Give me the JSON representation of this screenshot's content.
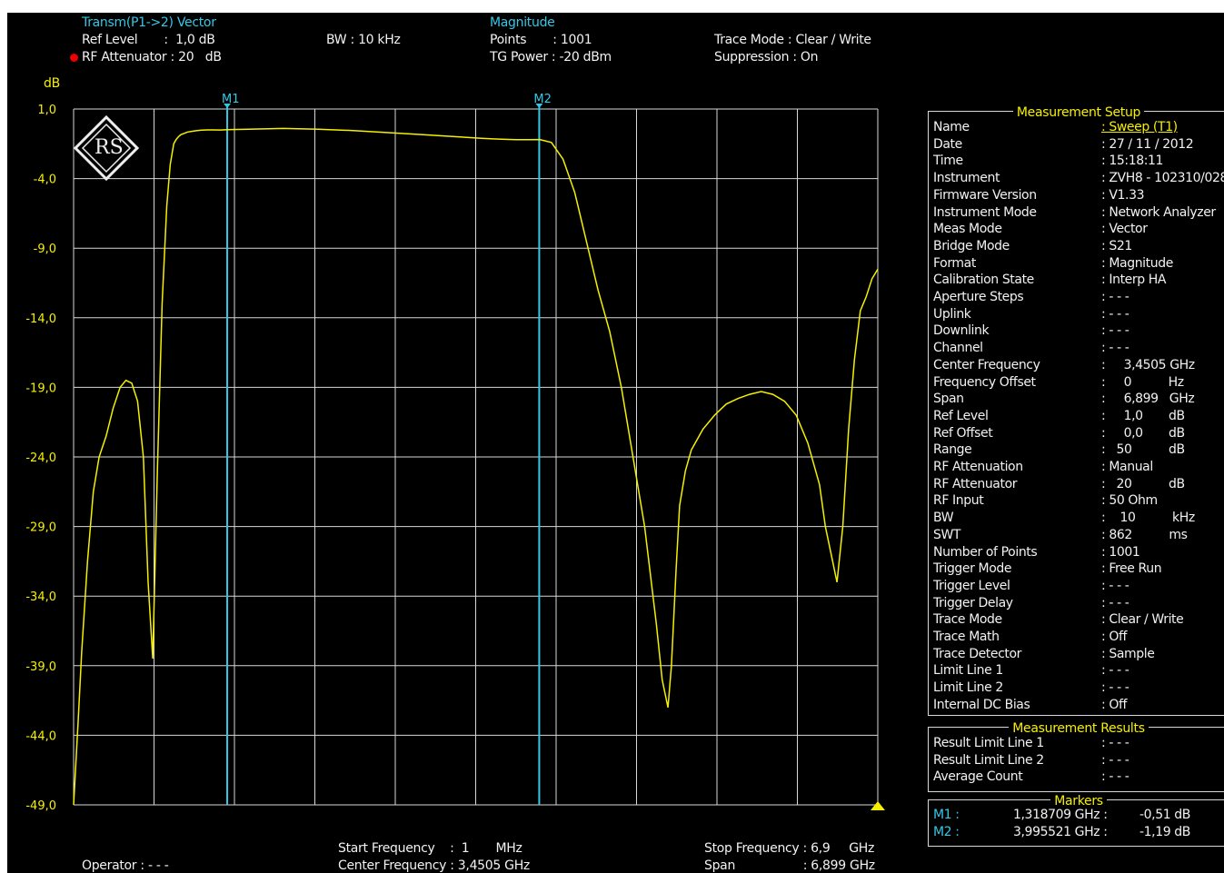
{
  "header": {
    "mode": "Transm(P1->2) Vector",
    "ref_level": "Ref Level       :  1,0 dB",
    "rf_attenuator": "RF Attenuator : 20   dB",
    "bw": "BW : 10 kHz",
    "format": "Magnitude",
    "points": "Points       : 1001",
    "tg_power": "TG Power : -20 dBm",
    "trace_mode": "Trace Mode : Clear / Write",
    "suppression": "Suppression : On"
  },
  "footer": {
    "operator": "Operator : - - -",
    "start_frequency": "Start Frequency    :  1       MHz",
    "center_frequency": "Center Frequency : 3,4505 GHz",
    "stop_frequency": "Stop Frequency : 6,9     GHz",
    "span": "Span                  : 6,899 GHz"
  },
  "colors": {
    "trace": "#f5f000",
    "marker": "#35c8e6",
    "grid": "#d8d8d8",
    "background": "#000000",
    "rec_dot": "#ee0000"
  },
  "logo": {
    "icon": "rohde-schwarz-logo",
    "text": "RS"
  },
  "chart_data": {
    "type": "line",
    "ylabel": "dB",
    "ylim": [
      -49,
      1
    ],
    "yticks": [
      "1,0",
      "-4,0",
      "-9,0",
      "-14,0",
      "-19,0",
      "-24,0",
      "-29,0",
      "-34,0",
      "-39,0",
      "-44,0",
      "-49,0"
    ],
    "xlim": [
      0.001,
      6.9
    ],
    "x_unit": "GHz",
    "grid": true,
    "markers": [
      {
        "label": "M1",
        "x": 1.318709,
        "y": -0.51
      },
      {
        "label": "M2",
        "x": 3.995521,
        "y": -1.19
      }
    ],
    "end_marker_x": 6.9,
    "series": [
      {
        "x": [
          0.001,
          0.04,
          0.07,
          0.12,
          0.17,
          0.22,
          0.28,
          0.34,
          0.4,
          0.45,
          0.5,
          0.55,
          0.6,
          0.64,
          0.68,
          0.72,
          0.76,
          0.8,
          0.83,
          0.86,
          0.88,
          0.9,
          0.92,
          0.95,
          0.98,
          1.02,
          1.06,
          1.1,
          1.15,
          1.2,
          1.26,
          1.32,
          1.5,
          1.8,
          2.1,
          2.4,
          2.7,
          3.0,
          3.3,
          3.5,
          3.6,
          3.7,
          3.8,
          3.9,
          4.0,
          4.1,
          4.2,
          4.3,
          4.4,
          4.5,
          4.6,
          4.7,
          4.8,
          4.9,
          5.0,
          5.05,
          5.1,
          5.13,
          5.17,
          5.2,
          5.25,
          5.3,
          5.4,
          5.5,
          5.6,
          5.7,
          5.8,
          5.9,
          6.0,
          6.1,
          6.2,
          6.3,
          6.4,
          6.45,
          6.5,
          6.55,
          6.6,
          6.65,
          6.7,
          6.75,
          6.8,
          6.85,
          6.9
        ],
        "y": [
          -49,
          -43,
          -38,
          -31.5,
          -26.5,
          -24,
          -22.5,
          -20.5,
          -19,
          -18.5,
          -18.7,
          -20,
          -24,
          -33,
          -38.5,
          -25,
          -13,
          -6,
          -3,
          -1.5,
          -1.2,
          -1.0,
          -0.85,
          -0.75,
          -0.65,
          -0.6,
          -0.55,
          -0.52,
          -0.5,
          -0.5,
          -0.51,
          -0.48,
          -0.45,
          -0.4,
          -0.45,
          -0.55,
          -0.7,
          -0.85,
          -1.0,
          -1.1,
          -1.15,
          -1.18,
          -1.2,
          -1.2,
          -1.19,
          -1.4,
          -2.6,
          -5,
          -8.5,
          -12,
          -15,
          -19,
          -24,
          -29,
          -36,
          -40,
          -42,
          -39,
          -32,
          -27.5,
          -25,
          -23.5,
          -22,
          -21,
          -20.2,
          -19.8,
          -19.5,
          -19.3,
          -19.5,
          -20,
          -21,
          -23,
          -26,
          -29,
          -31,
          -33,
          -29,
          -22,
          -17,
          -13.5,
          -12.5,
          -11.2,
          -10.5
        ]
      }
    ]
  },
  "setup": {
    "title": "Measurement Setup",
    "rows": [
      {
        "k": "Name",
        "v": ": Sweep (T1)"
      },
      {
        "k": "Date",
        "v": ": 27 / 11 / 2012"
      },
      {
        "k": "Time",
        "v": ": 15:18:11"
      },
      {
        "k": "Instrument",
        "v": ": ZVH8 - 102310/028"
      },
      {
        "k": "Firmware Version",
        "v": ": V1.33"
      },
      {
        "k": "Instrument Mode",
        "v": ": Network Analyzer"
      },
      {
        "k": "Meas Mode",
        "v": ": Vector"
      },
      {
        "k": "Bridge Mode",
        "v": ": S21"
      },
      {
        "k": "Format",
        "v": ": Magnitude"
      },
      {
        "k": "Calibration State",
        "v": ": Interp HA"
      },
      {
        "k": "Aperture Steps",
        "v": ": - - -"
      },
      {
        "k": "Uplink",
        "v": ": - - -"
      },
      {
        "k": "Downlink",
        "v": ": - - -"
      },
      {
        "k": "Channel",
        "v": ": - - -"
      },
      {
        "k": "Center Frequency",
        "v": ":     3,4505 GHz"
      },
      {
        "k": "Frequency Offset",
        "v": ":     0          Hz"
      },
      {
        "k": "Span",
        "v": ":     6,899   GHz"
      },
      {
        "k": "Ref Level",
        "v": ":     1,0       dB"
      },
      {
        "k": "Ref Offset",
        "v": ":     0,0       dB"
      },
      {
        "k": "Range",
        "v": ":   50          dB"
      },
      {
        "k": "RF Attenuation",
        "v": ": Manual"
      },
      {
        "k": "RF Attenuator",
        "v": ":   20          dB"
      },
      {
        "k": "RF Input",
        "v": ": 50 Ohm"
      },
      {
        "k": "BW",
        "v": ":    10          kHz"
      },
      {
        "k": "SWT",
        "v": ": 862          ms"
      },
      {
        "k": "Number of Points",
        "v": ": 1001"
      },
      {
        "k": "Trigger Mode",
        "v": ": Free Run"
      },
      {
        "k": "Trigger Level",
        "v": ": - - -"
      },
      {
        "k": "Trigger Delay",
        "v": ": - - -"
      },
      {
        "k": "Trace Mode",
        "v": ": Clear / Write"
      },
      {
        "k": "Trace Math",
        "v": ": Off"
      },
      {
        "k": "Trace Detector",
        "v": ": Sample"
      },
      {
        "k": "Limit Line 1",
        "v": ": - - -"
      },
      {
        "k": "Limit Line 2",
        "v": ": - - -"
      },
      {
        "k": "Internal DC Bias",
        "v": ": Off"
      }
    ]
  },
  "results": {
    "title": "Measurement Results",
    "rows": [
      {
        "k": "Result Limit Line 1",
        "v": ": - - -"
      },
      {
        "k": "Result Limit Line 2",
        "v": ": - - -"
      },
      {
        "k": "Average Count",
        "v": ": - - -"
      }
    ]
  },
  "markers_panel": {
    "title": "Markers",
    "rows": [
      {
        "a": "M1 :",
        "f": "1,318709 GHz :",
        "l": "-0,51 dB"
      },
      {
        "a": "M2 :",
        "f": "3,995521 GHz :",
        "l": "-1,19 dB"
      }
    ]
  }
}
